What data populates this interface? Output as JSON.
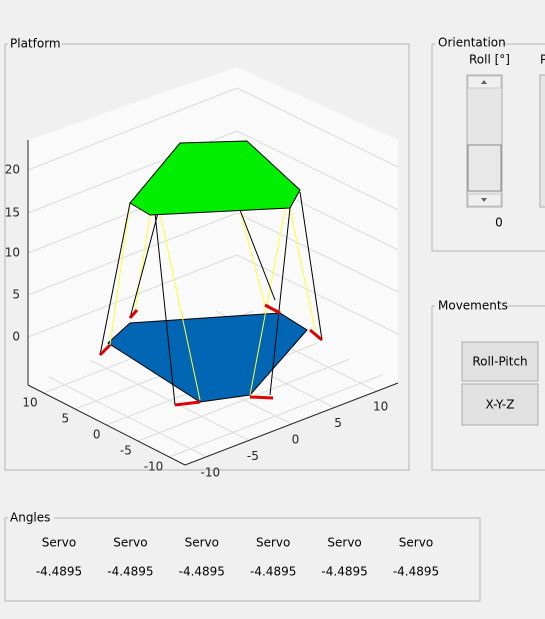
{
  "platform_panel": {
    "title": "Platform",
    "z_ticks": [
      "20",
      "15",
      "10",
      "5",
      "0"
    ],
    "y_ticks": [
      "10",
      "5",
      "0",
      "-5",
      "-10"
    ],
    "x_ticks": [
      "-10",
      "-5",
      "0",
      "5",
      "10"
    ]
  },
  "orientation_panel": {
    "title": "Orientation",
    "roll_label": "Roll [°]",
    "pitch_label": "P",
    "roll_value": "0"
  },
  "movements_panel": {
    "title": "Movements",
    "buttons": [
      "Roll-Pitch",
      "X-Y-Z"
    ]
  },
  "angles_panel": {
    "title": "Angles",
    "labels": [
      "Servo",
      "Servo",
      "Servo",
      "Servo",
      "Servo",
      "Servo"
    ],
    "values": [
      "-4.4895",
      "-4.4895",
      "-4.4895",
      "-4.4895",
      "-4.4895",
      "-4.4895"
    ]
  }
}
